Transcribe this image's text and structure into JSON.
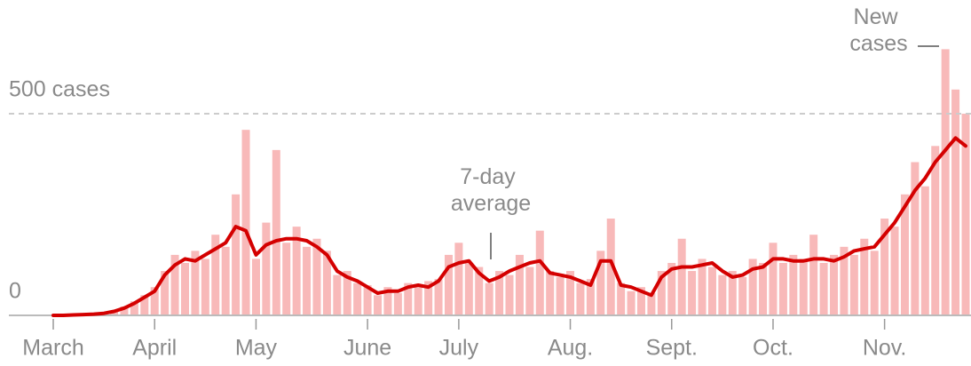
{
  "chart_data": {
    "type": "bar",
    "categories": [
      "March",
      null,
      null,
      null,
      null,
      null,
      null,
      null,
      null,
      null,
      "April",
      null,
      null,
      null,
      null,
      null,
      null,
      null,
      null,
      null,
      "May",
      null,
      null,
      null,
      null,
      null,
      null,
      null,
      null,
      null,
      null,
      "June",
      null,
      null,
      null,
      null,
      null,
      null,
      null,
      null,
      "July",
      null,
      null,
      null,
      null,
      null,
      null,
      null,
      null,
      null,
      null,
      "Aug.",
      null,
      null,
      null,
      null,
      null,
      null,
      null,
      null,
      null,
      "Sept.",
      null,
      null,
      null,
      null,
      null,
      null,
      null,
      null,
      null,
      "Oct.",
      null,
      null,
      null,
      null,
      null,
      null,
      null,
      null,
      null,
      null,
      "Nov.",
      null,
      null,
      null,
      null,
      null,
      null,
      null,
      null
    ],
    "series": [
      {
        "name": "New cases",
        "type": "bar",
        "color": "#f8b9b9",
        "values": [
          0,
          0,
          2,
          3,
          4,
          8,
          12,
          22,
          35,
          50,
          70,
          110,
          150,
          130,
          160,
          140,
          200,
          170,
          300,
          460,
          140,
          230,
          410,
          180,
          220,
          170,
          190,
          160,
          100,
          110,
          80,
          75,
          50,
          70,
          55,
          80,
          70,
          85,
          90,
          150,
          180,
          130,
          120,
          80,
          110,
          100,
          150,
          120,
          210,
          110,
          95,
          110,
          80,
          90,
          160,
          240,
          80,
          60,
          70,
          55,
          110,
          130,
          190,
          110,
          140,
          120,
          100,
          110,
          95,
          140,
          130,
          180,
          130,
          150,
          140,
          200,
          130,
          150,
          170,
          150,
          190,
          160,
          240,
          220,
          300,
          380,
          320,
          420,
          660,
          560,
          500
        ]
      },
      {
        "name": "7-day average",
        "type": "line",
        "color": "#d40000",
        "values": [
          0,
          0,
          1,
          2,
          3,
          5,
          10,
          18,
          30,
          45,
          60,
          100,
          125,
          140,
          135,
          150,
          165,
          180,
          220,
          210,
          150,
          175,
          185,
          190,
          190,
          185,
          170,
          150,
          110,
          95,
          85,
          70,
          55,
          60,
          60,
          70,
          75,
          70,
          85,
          120,
          130,
          135,
          105,
          85,
          95,
          110,
          120,
          130,
          135,
          105,
          100,
          95,
          85,
          75,
          135,
          135,
          75,
          70,
          60,
          50,
          95,
          115,
          120,
          120,
          125,
          130,
          110,
          95,
          100,
          115,
          120,
          140,
          140,
          135,
          135,
          140,
          140,
          135,
          145,
          160,
          165,
          170,
          200,
          230,
          270,
          310,
          340,
          380,
          410,
          440,
          420
        ]
      }
    ],
    "ylim": [
      0,
      782
    ],
    "yticks": [
      0,
      {
        "value": 500,
        "label": "500 cases"
      }
    ],
    "grid": true
  }
}
